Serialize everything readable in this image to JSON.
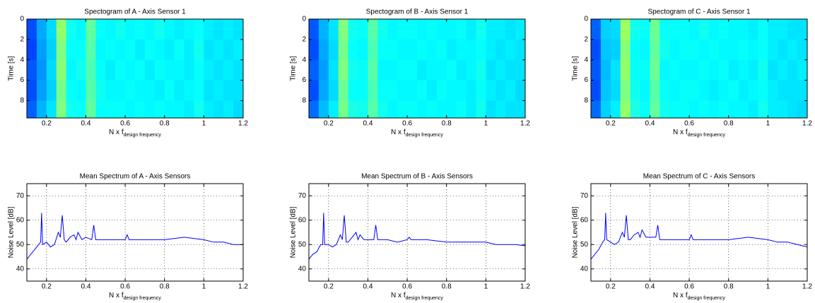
{
  "chart_data": [
    {
      "type": "heatmap",
      "title": "Spectogram of A - Axis Sensor 1",
      "xlabel": "N x f",
      "xlabel_subscript": "design frequency",
      "ylabel": "Time [s]",
      "colormap": "jet",
      "zlim": [
        0,
        1
      ],
      "x": [
        0.125,
        0.175,
        0.225,
        0.275,
        0.325,
        0.375,
        0.425,
        0.475,
        0.525,
        0.575,
        0.625,
        0.675,
        0.725,
        0.775,
        0.825,
        0.875,
        0.925,
        0.975,
        1.025,
        1.075,
        1.125,
        1.175
      ],
      "y": [
        1,
        3,
        5,
        7,
        9
      ],
      "values": [
        [
          0.2,
          0.29,
          0.34,
          0.52,
          0.39,
          0.37,
          0.47,
          0.38,
          0.37,
          0.39,
          0.37,
          0.38,
          0.37,
          0.39,
          0.37,
          0.36,
          0.37,
          0.38,
          0.36,
          0.35,
          0.36,
          0.35
        ],
        [
          0.19,
          0.28,
          0.33,
          0.5,
          0.38,
          0.38,
          0.46,
          0.37,
          0.38,
          0.37,
          0.38,
          0.36,
          0.38,
          0.37,
          0.36,
          0.38,
          0.36,
          0.39,
          0.35,
          0.36,
          0.35,
          0.36
        ],
        [
          0.21,
          0.27,
          0.34,
          0.51,
          0.37,
          0.39,
          0.45,
          0.38,
          0.36,
          0.38,
          0.37,
          0.38,
          0.36,
          0.38,
          0.37,
          0.37,
          0.36,
          0.38,
          0.36,
          0.35,
          0.36,
          0.35
        ],
        [
          0.2,
          0.28,
          0.33,
          0.49,
          0.38,
          0.37,
          0.46,
          0.39,
          0.37,
          0.37,
          0.38,
          0.37,
          0.37,
          0.36,
          0.38,
          0.36,
          0.37,
          0.38,
          0.35,
          0.36,
          0.35,
          0.35
        ],
        [
          0.22,
          0.3,
          0.35,
          0.5,
          0.39,
          0.38,
          0.47,
          0.38,
          0.38,
          0.38,
          0.37,
          0.38,
          0.37,
          0.38,
          0.37,
          0.37,
          0.36,
          0.39,
          0.36,
          0.35,
          0.36,
          0.34
        ]
      ],
      "xlim": [
        0.1,
        1.2
      ],
      "ylim": [
        9.7,
        0
      ],
      "xticks": [
        0.2,
        0.4,
        0.6,
        0.8,
        1,
        1.2
      ],
      "yticks": [
        0,
        2,
        4,
        6,
        8
      ]
    },
    {
      "type": "heatmap",
      "title": "Spectogram of B - Axis Sensor 1",
      "xlabel": "N x f",
      "xlabel_subscript": "design frequency",
      "ylabel": "Time [s]",
      "colormap": "jet",
      "zlim": [
        0,
        1
      ],
      "x": [
        0.125,
        0.175,
        0.225,
        0.275,
        0.325,
        0.375,
        0.425,
        0.475,
        0.525,
        0.575,
        0.625,
        0.675,
        0.725,
        0.775,
        0.825,
        0.875,
        0.925,
        0.975,
        1.025,
        1.075,
        1.125,
        1.175
      ],
      "y": [
        1,
        3,
        5,
        7,
        9
      ],
      "values": [
        [
          0.21,
          0.3,
          0.35,
          0.5,
          0.39,
          0.38,
          0.46,
          0.39,
          0.37,
          0.38,
          0.38,
          0.37,
          0.38,
          0.37,
          0.37,
          0.38,
          0.36,
          0.39,
          0.36,
          0.36,
          0.35,
          0.36
        ],
        [
          0.2,
          0.29,
          0.34,
          0.49,
          0.38,
          0.37,
          0.45,
          0.38,
          0.38,
          0.37,
          0.37,
          0.38,
          0.37,
          0.38,
          0.36,
          0.37,
          0.37,
          0.38,
          0.36,
          0.35,
          0.36,
          0.35
        ],
        [
          0.22,
          0.28,
          0.35,
          0.5,
          0.39,
          0.38,
          0.46,
          0.37,
          0.37,
          0.38,
          0.38,
          0.36,
          0.37,
          0.37,
          0.38,
          0.36,
          0.37,
          0.39,
          0.35,
          0.36,
          0.35,
          0.35
        ],
        [
          0.2,
          0.29,
          0.34,
          0.48,
          0.38,
          0.38,
          0.45,
          0.38,
          0.38,
          0.37,
          0.37,
          0.38,
          0.36,
          0.38,
          0.37,
          0.37,
          0.36,
          0.38,
          0.36,
          0.35,
          0.36,
          0.34
        ],
        [
          0.23,
          0.31,
          0.36,
          0.49,
          0.4,
          0.39,
          0.46,
          0.39,
          0.37,
          0.38,
          0.38,
          0.37,
          0.38,
          0.37,
          0.37,
          0.38,
          0.36,
          0.39,
          0.35,
          0.36,
          0.35,
          0.35
        ]
      ],
      "xlim": [
        0.1,
        1.2
      ],
      "ylim": [
        9.7,
        0
      ],
      "xticks": [
        0.2,
        0.4,
        0.6,
        0.8,
        1,
        1.2
      ],
      "yticks": [
        0,
        2,
        4,
        6,
        8
      ]
    },
    {
      "type": "heatmap",
      "title": "Spectogram of C - Axis Sensor 1",
      "xlabel": "N x f",
      "xlabel_subscript": "design frequency",
      "ylabel": "Time [s]",
      "colormap": "jet",
      "zlim": [
        0,
        1
      ],
      "x": [
        0.125,
        0.175,
        0.225,
        0.275,
        0.325,
        0.375,
        0.425,
        0.475,
        0.525,
        0.575,
        0.625,
        0.675,
        0.725,
        0.775,
        0.825,
        0.875,
        0.925,
        0.975,
        1.025,
        1.075,
        1.125,
        1.175
      ],
      "y": [
        1,
        3,
        5,
        7,
        9
      ],
      "values": [
        [
          0.22,
          0.33,
          0.34,
          0.53,
          0.39,
          0.38,
          0.48,
          0.38,
          0.38,
          0.38,
          0.37,
          0.39,
          0.37,
          0.38,
          0.37,
          0.37,
          0.36,
          0.38,
          0.36,
          0.36,
          0.35,
          0.35
        ],
        [
          0.2,
          0.32,
          0.33,
          0.51,
          0.38,
          0.37,
          0.47,
          0.39,
          0.37,
          0.38,
          0.38,
          0.37,
          0.38,
          0.37,
          0.37,
          0.38,
          0.37,
          0.38,
          0.36,
          0.35,
          0.36,
          0.35
        ],
        [
          0.21,
          0.31,
          0.35,
          0.52,
          0.38,
          0.38,
          0.48,
          0.37,
          0.38,
          0.37,
          0.37,
          0.38,
          0.37,
          0.38,
          0.36,
          0.37,
          0.36,
          0.39,
          0.35,
          0.36,
          0.35,
          0.36
        ],
        [
          0.2,
          0.32,
          0.34,
          0.5,
          0.39,
          0.37,
          0.46,
          0.38,
          0.37,
          0.38,
          0.38,
          0.37,
          0.36,
          0.37,
          0.38,
          0.36,
          0.37,
          0.38,
          0.36,
          0.35,
          0.35,
          0.35
        ],
        [
          0.23,
          0.33,
          0.36,
          0.52,
          0.4,
          0.38,
          0.47,
          0.39,
          0.38,
          0.38,
          0.37,
          0.38,
          0.37,
          0.38,
          0.37,
          0.37,
          0.36,
          0.39,
          0.36,
          0.36,
          0.35,
          0.34
        ]
      ],
      "xlim": [
        0.1,
        1.2
      ],
      "ylim": [
        9.7,
        0
      ],
      "xticks": [
        0.2,
        0.4,
        0.6,
        0.8,
        1,
        1.2
      ],
      "yticks": [
        0,
        2,
        4,
        6,
        8
      ]
    },
    {
      "type": "line",
      "title": "Mean Spectrum of A - Axis Sensors",
      "xlabel": "N x f",
      "xlabel_subscript": "design frequency",
      "ylabel": "Noise Level [dB]",
      "color": "#0000ff",
      "grid": true,
      "x": [
        0.1,
        0.12,
        0.14,
        0.16,
        0.17,
        0.175,
        0.18,
        0.2,
        0.22,
        0.24,
        0.26,
        0.27,
        0.28,
        0.29,
        0.3,
        0.32,
        0.34,
        0.35,
        0.36,
        0.38,
        0.4,
        0.43,
        0.44,
        0.45,
        0.5,
        0.55,
        0.6,
        0.61,
        0.62,
        0.7,
        0.8,
        0.9,
        1.0,
        1.05,
        1.1,
        1.15,
        1.2
      ],
      "values": [
        44,
        46,
        48,
        50,
        51,
        63,
        50,
        51,
        49,
        50,
        55,
        53,
        62,
        52,
        51,
        53,
        54,
        52,
        55,
        52,
        53,
        52,
        58,
        52,
        52,
        52,
        52,
        54,
        52,
        52,
        52,
        53,
        52,
        51,
        51,
        50,
        50
      ],
      "xlim": [
        0.1,
        1.2
      ],
      "ylim": [
        35,
        75
      ],
      "xticks": [
        0.2,
        0.4,
        0.6,
        0.8,
        1,
        1.2
      ],
      "yticks": [
        40,
        50,
        60,
        70
      ]
    },
    {
      "type": "line",
      "title": "Mean Spectrum of B - Axis Sensors",
      "xlabel": "N x f",
      "xlabel_subscript": "design frequency",
      "ylabel": "Noise Level [dB]",
      "color": "#0000ff",
      "grid": true,
      "x": [
        0.1,
        0.12,
        0.14,
        0.16,
        0.17,
        0.175,
        0.18,
        0.2,
        0.22,
        0.24,
        0.26,
        0.27,
        0.28,
        0.29,
        0.3,
        0.32,
        0.34,
        0.35,
        0.36,
        0.38,
        0.4,
        0.43,
        0.44,
        0.45,
        0.5,
        0.55,
        0.6,
        0.61,
        0.62,
        0.7,
        0.8,
        0.9,
        1.0,
        1.05,
        1.1,
        1.15,
        1.2
      ],
      "values": [
        44,
        46,
        47,
        50,
        50,
        63,
        50,
        50,
        49,
        50,
        54,
        52,
        62,
        51,
        51,
        53,
        55,
        52,
        54,
        52,
        52,
        52,
        58,
        52,
        52,
        51,
        52,
        53,
        52,
        52,
        51,
        51,
        51,
        50,
        50,
        50,
        49.5
      ],
      "xlim": [
        0.1,
        1.2
      ],
      "ylim": [
        35,
        75
      ],
      "xticks": [
        0.2,
        0.4,
        0.6,
        0.8,
        1,
        1.2
      ],
      "yticks": [
        40,
        50,
        60,
        70
      ]
    },
    {
      "type": "line",
      "title": "Mean Spectrum of C - Axis Sensors",
      "xlabel": "N x f",
      "xlabel_subscript": "design frequency",
      "ylabel": "Noise Level [dB]",
      "color": "#0000ff",
      "grid": true,
      "x": [
        0.1,
        0.12,
        0.14,
        0.16,
        0.17,
        0.175,
        0.18,
        0.2,
        0.22,
        0.24,
        0.26,
        0.27,
        0.28,
        0.29,
        0.3,
        0.32,
        0.34,
        0.35,
        0.36,
        0.38,
        0.4,
        0.43,
        0.44,
        0.45,
        0.5,
        0.55,
        0.6,
        0.61,
        0.62,
        0.7,
        0.8,
        0.9,
        1.0,
        1.05,
        1.1,
        1.15,
        1.2
      ],
      "values": [
        44,
        46,
        48,
        51,
        52,
        63,
        52,
        51,
        50,
        51,
        55,
        53,
        62,
        52,
        52,
        54,
        55,
        53,
        56,
        53,
        53,
        53,
        58,
        52,
        52,
        52,
        52,
        54,
        52,
        52,
        52,
        53,
        52,
        51,
        51,
        50,
        49
      ],
      "xlim": [
        0.1,
        1.2
      ],
      "ylim": [
        35,
        75
      ],
      "xticks": [
        0.2,
        0.4,
        0.6,
        0.8,
        1,
        1.2
      ],
      "yticks": [
        40,
        50,
        60,
        70
      ]
    }
  ]
}
